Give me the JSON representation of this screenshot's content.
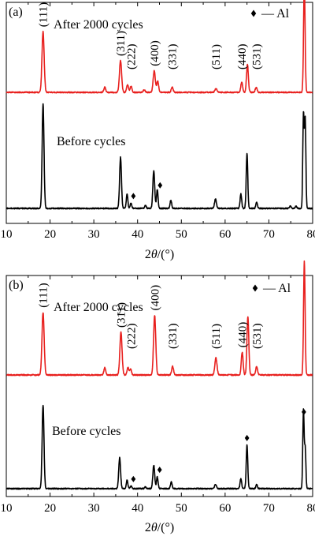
{
  "chart_data": [
    {
      "type": "line",
      "panel_label": "(a)",
      "xlabel_html": "2θ/(°)",
      "xlabel_parts": [
        "2",
        "θ",
        "/(°)"
      ],
      "xlim": [
        10,
        80
      ],
      "xticks": [
        10,
        20,
        30,
        40,
        50,
        60,
        70,
        80
      ],
      "legend_text": "— Al",
      "series": [
        {
          "label": "After 2000 cycles",
          "color": "#e8201e",
          "baseline": 0,
          "peaks": [
            {
              "x": 18.4,
              "h": 0.48,
              "w": 0.35
            },
            {
              "x": 32.5,
              "h": 0.04,
              "w": 0.3
            },
            {
              "x": 36.1,
              "h": 0.25,
              "w": 0.35
            },
            {
              "x": 37.7,
              "h": 0.06,
              "w": 0.3
            },
            {
              "x": 38.5,
              "h": 0.05,
              "w": 0.3
            },
            {
              "x": 41.5,
              "h": 0.02,
              "w": 0.3
            },
            {
              "x": 43.8,
              "h": 0.17,
              "w": 0.35
            },
            {
              "x": 44.6,
              "h": 0.09,
              "w": 0.3
            },
            {
              "x": 47.9,
              "h": 0.04,
              "w": 0.3
            },
            {
              "x": 57.9,
              "h": 0.03,
              "w": 0.35
            },
            {
              "x": 63.8,
              "h": 0.08,
              "w": 0.3
            },
            {
              "x": 65.1,
              "h": 0.22,
              "w": 0.3
            },
            {
              "x": 67.1,
              "h": 0.04,
              "w": 0.3
            },
            {
              "x": 78.1,
              "h": 0.86,
              "w": 0.25
            }
          ],
          "peak_labels": [
            {
              "x": 18.4,
              "text": "(111)"
            },
            {
              "x": 36.1,
              "text": "(311)"
            },
            {
              "x": 38.5,
              "text": "(222)"
            },
            {
              "x": 43.8,
              "text": "(400)"
            },
            {
              "x": 47.9,
              "text": "(331)"
            },
            {
              "x": 57.9,
              "text": "(511)"
            },
            {
              "x": 63.8,
              "text": "(440)"
            },
            {
              "x": 67.1,
              "text": "(531)"
            }
          ]
        },
        {
          "label": "Before cycles",
          "color": "#000000",
          "baseline": 0,
          "peaks": [
            {
              "x": 18.4,
              "h": 1.0,
              "w": 0.3
            },
            {
              "x": 36.1,
              "h": 0.49,
              "w": 0.3
            },
            {
              "x": 37.6,
              "h": 0.14,
              "w": 0.25
            },
            {
              "x": 38.5,
              "h": 0.05,
              "w": 0.25
            },
            {
              "x": 41.8,
              "h": 0.03,
              "w": 0.25
            },
            {
              "x": 43.7,
              "h": 0.36,
              "w": 0.3
            },
            {
              "x": 44.5,
              "h": 0.18,
              "w": 0.25
            },
            {
              "x": 47.6,
              "h": 0.08,
              "w": 0.25
            },
            {
              "x": 57.8,
              "h": 0.09,
              "w": 0.3
            },
            {
              "x": 63.6,
              "h": 0.14,
              "w": 0.25
            },
            {
              "x": 65.0,
              "h": 0.53,
              "w": 0.25
            },
            {
              "x": 67.2,
              "h": 0.06,
              "w": 0.25
            },
            {
              "x": 74.9,
              "h": 0.02,
              "w": 0.25
            },
            {
              "x": 76.2,
              "h": 0.02,
              "w": 0.25
            },
            {
              "x": 77.9,
              "h": 0.9,
              "w": 0.22
            },
            {
              "x": 78.3,
              "h": 0.85,
              "w": 0.22
            }
          ],
          "al_markers": [
            38.5,
            44.6
          ]
        }
      ]
    },
    {
      "type": "line",
      "panel_label": "(b)",
      "xlabel_html": "2θ/(°)",
      "xlabel_parts": [
        "2",
        "θ",
        "/(°)"
      ],
      "xlim": [
        10,
        80
      ],
      "xticks": [
        10,
        20,
        30,
        40,
        50,
        60,
        70,
        80
      ],
      "legend_text": "— Al",
      "series": [
        {
          "label": "After 2000 cycles",
          "color": "#e8201e",
          "baseline": 0,
          "peaks": [
            {
              "x": 18.4,
              "h": 0.44,
              "w": 0.35
            },
            {
              "x": 32.5,
              "h": 0.05,
              "w": 0.3
            },
            {
              "x": 36.2,
              "h": 0.3,
              "w": 0.35
            },
            {
              "x": 37.8,
              "h": 0.05,
              "w": 0.3
            },
            {
              "x": 38.4,
              "h": 0.04,
              "w": 0.3
            },
            {
              "x": 43.9,
              "h": 0.42,
              "w": 0.35
            },
            {
              "x": 48.0,
              "h": 0.06,
              "w": 0.3
            },
            {
              "x": 57.9,
              "h": 0.12,
              "w": 0.35
            },
            {
              "x": 63.9,
              "h": 0.16,
              "w": 0.3
            },
            {
              "x": 65.2,
              "h": 0.41,
              "w": 0.3
            },
            {
              "x": 67.2,
              "h": 0.06,
              "w": 0.3
            },
            {
              "x": 78.1,
              "h": 0.8,
              "w": 0.25
            }
          ],
          "peak_labels": [
            {
              "x": 18.4,
              "text": "(111)"
            },
            {
              "x": 36.2,
              "text": "(311)"
            },
            {
              "x": 38.5,
              "text": "(222)"
            },
            {
              "x": 43.9,
              "text": "(400)"
            },
            {
              "x": 48.0,
              "text": "(331)"
            },
            {
              "x": 57.9,
              "text": "(511)"
            },
            {
              "x": 63.9,
              "text": "(440)"
            },
            {
              "x": 67.2,
              "text": "(531)"
            }
          ]
        },
        {
          "label": "Before cycles",
          "color": "#000000",
          "baseline": 0,
          "peaks": [
            {
              "x": 18.4,
              "h": 1.0,
              "w": 0.3
            },
            {
              "x": 35.9,
              "h": 0.37,
              "w": 0.3
            },
            {
              "x": 37.6,
              "h": 0.1,
              "w": 0.25
            },
            {
              "x": 38.5,
              "h": 0.03,
              "w": 0.25
            },
            {
              "x": 41.8,
              "h": 0.02,
              "w": 0.25
            },
            {
              "x": 43.7,
              "h": 0.28,
              "w": 0.3
            },
            {
              "x": 44.5,
              "h": 0.14,
              "w": 0.25
            },
            {
              "x": 47.7,
              "h": 0.08,
              "w": 0.25
            },
            {
              "x": 57.8,
              "h": 0.05,
              "w": 0.3
            },
            {
              "x": 63.6,
              "h": 0.12,
              "w": 0.25
            },
            {
              "x": 65.0,
              "h": 0.52,
              "w": 0.25
            },
            {
              "x": 67.2,
              "h": 0.05,
              "w": 0.25
            },
            {
              "x": 77.9,
              "h": 0.93,
              "w": 0.22
            },
            {
              "x": 78.3,
              "h": 0.48,
              "w": 0.22
            }
          ],
          "al_markers": [
            38.5,
            44.5,
            65.0,
            78.0
          ]
        }
      ]
    }
  ]
}
